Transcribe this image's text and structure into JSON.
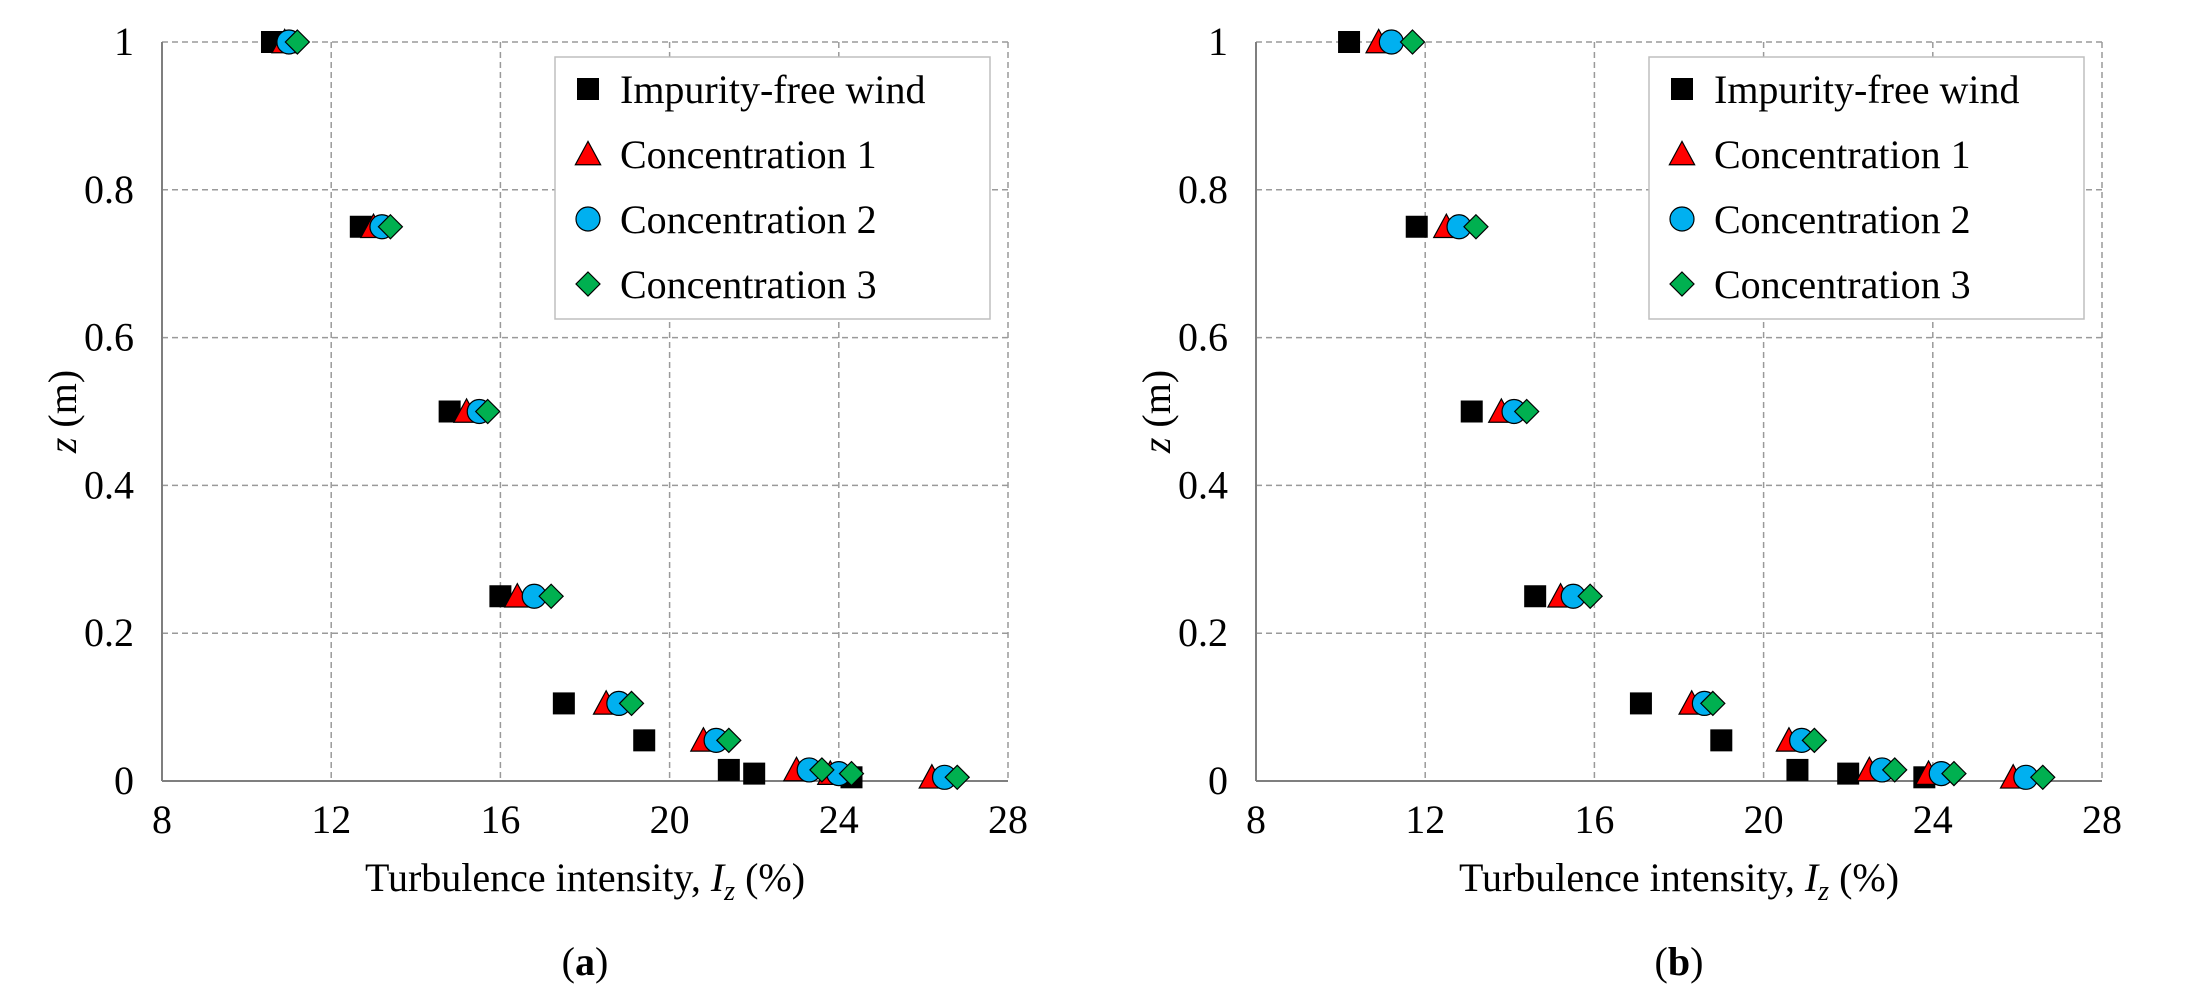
{
  "chart_data": [
    {
      "type": "scatter",
      "panel_label": "a",
      "xlabel": "Turbulence intensity, ",
      "xlabel_var": "I",
      "xlabel_sub": "z",
      "xlabel_unit": " (%)",
      "ylabel_var": "z",
      "ylabel_unit": " (m)",
      "xlim": [
        8,
        28
      ],
      "ylim": [
        0,
        1
      ],
      "xticks": [
        "8",
        "12",
        "16",
        "20",
        "24",
        "28"
      ],
      "yticks": [
        "0",
        "0.2",
        "0.4",
        "0.6",
        "0.8",
        "1"
      ],
      "grid": true,
      "legend_position": "top-right",
      "series": [
        {
          "name": "Impurity-free wind",
          "marker": "square",
          "color": "#000000",
          "points": [
            [
              10.6,
              1.0
            ],
            [
              12.7,
              0.75
            ],
            [
              14.8,
              0.5
            ],
            [
              16.0,
              0.25
            ],
            [
              17.5,
              0.105
            ],
            [
              19.4,
              0.055
            ],
            [
              21.4,
              0.015
            ],
            [
              22.0,
              0.01
            ],
            [
              24.3,
              0.005
            ]
          ]
        },
        {
          "name": "Concentration 1",
          "marker": "triangle",
          "color": "#ff0000",
          "points": [
            [
              10.9,
              1.0
            ],
            [
              13.0,
              0.75
            ],
            [
              15.2,
              0.5
            ],
            [
              16.4,
              0.25
            ],
            [
              18.5,
              0.105
            ],
            [
              20.8,
              0.055
            ],
            [
              23.0,
              0.015
            ],
            [
              23.8,
              0.01
            ],
            [
              26.2,
              0.005
            ]
          ]
        },
        {
          "name": "Concentration 2",
          "marker": "circle",
          "color": "#00b0f0",
          "points": [
            [
              11.0,
              1.0
            ],
            [
              13.2,
              0.75
            ],
            [
              15.5,
              0.5
            ],
            [
              16.8,
              0.25
            ],
            [
              18.8,
              0.105
            ],
            [
              21.1,
              0.055
            ],
            [
              23.3,
              0.015
            ],
            [
              24.0,
              0.01
            ],
            [
              26.5,
              0.005
            ]
          ]
        },
        {
          "name": "Concentration 3",
          "marker": "diamond",
          "color": "#00b050",
          "points": [
            [
              11.2,
              1.0
            ],
            [
              13.4,
              0.75
            ],
            [
              15.7,
              0.5
            ],
            [
              17.2,
              0.25
            ],
            [
              19.1,
              0.105
            ],
            [
              21.4,
              0.055
            ],
            [
              23.6,
              0.015
            ],
            [
              24.3,
              0.01
            ],
            [
              26.8,
              0.005
            ]
          ]
        }
      ]
    },
    {
      "type": "scatter",
      "panel_label": "b",
      "xlabel": "Turbulence intensity, ",
      "xlabel_var": "I",
      "xlabel_sub": "z",
      "xlabel_unit": " (%)",
      "ylabel_var": "z",
      "ylabel_unit": " (m)",
      "xlim": [
        8,
        28
      ],
      "ylim": [
        0,
        1
      ],
      "xticks": [
        "8",
        "12",
        "16",
        "20",
        "24",
        "28"
      ],
      "yticks": [
        "0",
        "0.2",
        "0.4",
        "0.6",
        "0.8",
        "1"
      ],
      "grid": true,
      "legend_position": "top-right",
      "series": [
        {
          "name": "Impurity-free wind",
          "marker": "square",
          "color": "#000000",
          "points": [
            [
              10.2,
              1.0
            ],
            [
              11.8,
              0.75
            ],
            [
              13.1,
              0.5
            ],
            [
              14.6,
              0.25
            ],
            [
              17.1,
              0.105
            ],
            [
              19.0,
              0.055
            ],
            [
              20.8,
              0.015
            ],
            [
              22.0,
              0.01
            ],
            [
              23.8,
              0.005
            ]
          ]
        },
        {
          "name": "Concentration 1",
          "marker": "triangle",
          "color": "#ff0000",
          "points": [
            [
              10.9,
              1.0
            ],
            [
              12.5,
              0.75
            ],
            [
              13.8,
              0.5
            ],
            [
              15.2,
              0.25
            ],
            [
              18.3,
              0.105
            ],
            [
              20.6,
              0.055
            ],
            [
              22.5,
              0.015
            ],
            [
              23.9,
              0.01
            ],
            [
              25.9,
              0.005
            ]
          ]
        },
        {
          "name": "Concentration 2",
          "marker": "circle",
          "color": "#00b0f0",
          "points": [
            [
              11.2,
              1.0
            ],
            [
              12.8,
              0.75
            ],
            [
              14.1,
              0.5
            ],
            [
              15.5,
              0.25
            ],
            [
              18.6,
              0.105
            ],
            [
              20.9,
              0.055
            ],
            [
              22.8,
              0.015
            ],
            [
              24.2,
              0.01
            ],
            [
              26.2,
              0.005
            ]
          ]
        },
        {
          "name": "Concentration 3",
          "marker": "diamond",
          "color": "#00b050",
          "points": [
            [
              11.7,
              1.0
            ],
            [
              13.2,
              0.75
            ],
            [
              14.4,
              0.5
            ],
            [
              15.9,
              0.25
            ],
            [
              18.8,
              0.105
            ],
            [
              21.2,
              0.055
            ],
            [
              23.1,
              0.015
            ],
            [
              24.5,
              0.01
            ],
            [
              26.6,
              0.005
            ]
          ]
        }
      ]
    }
  ]
}
